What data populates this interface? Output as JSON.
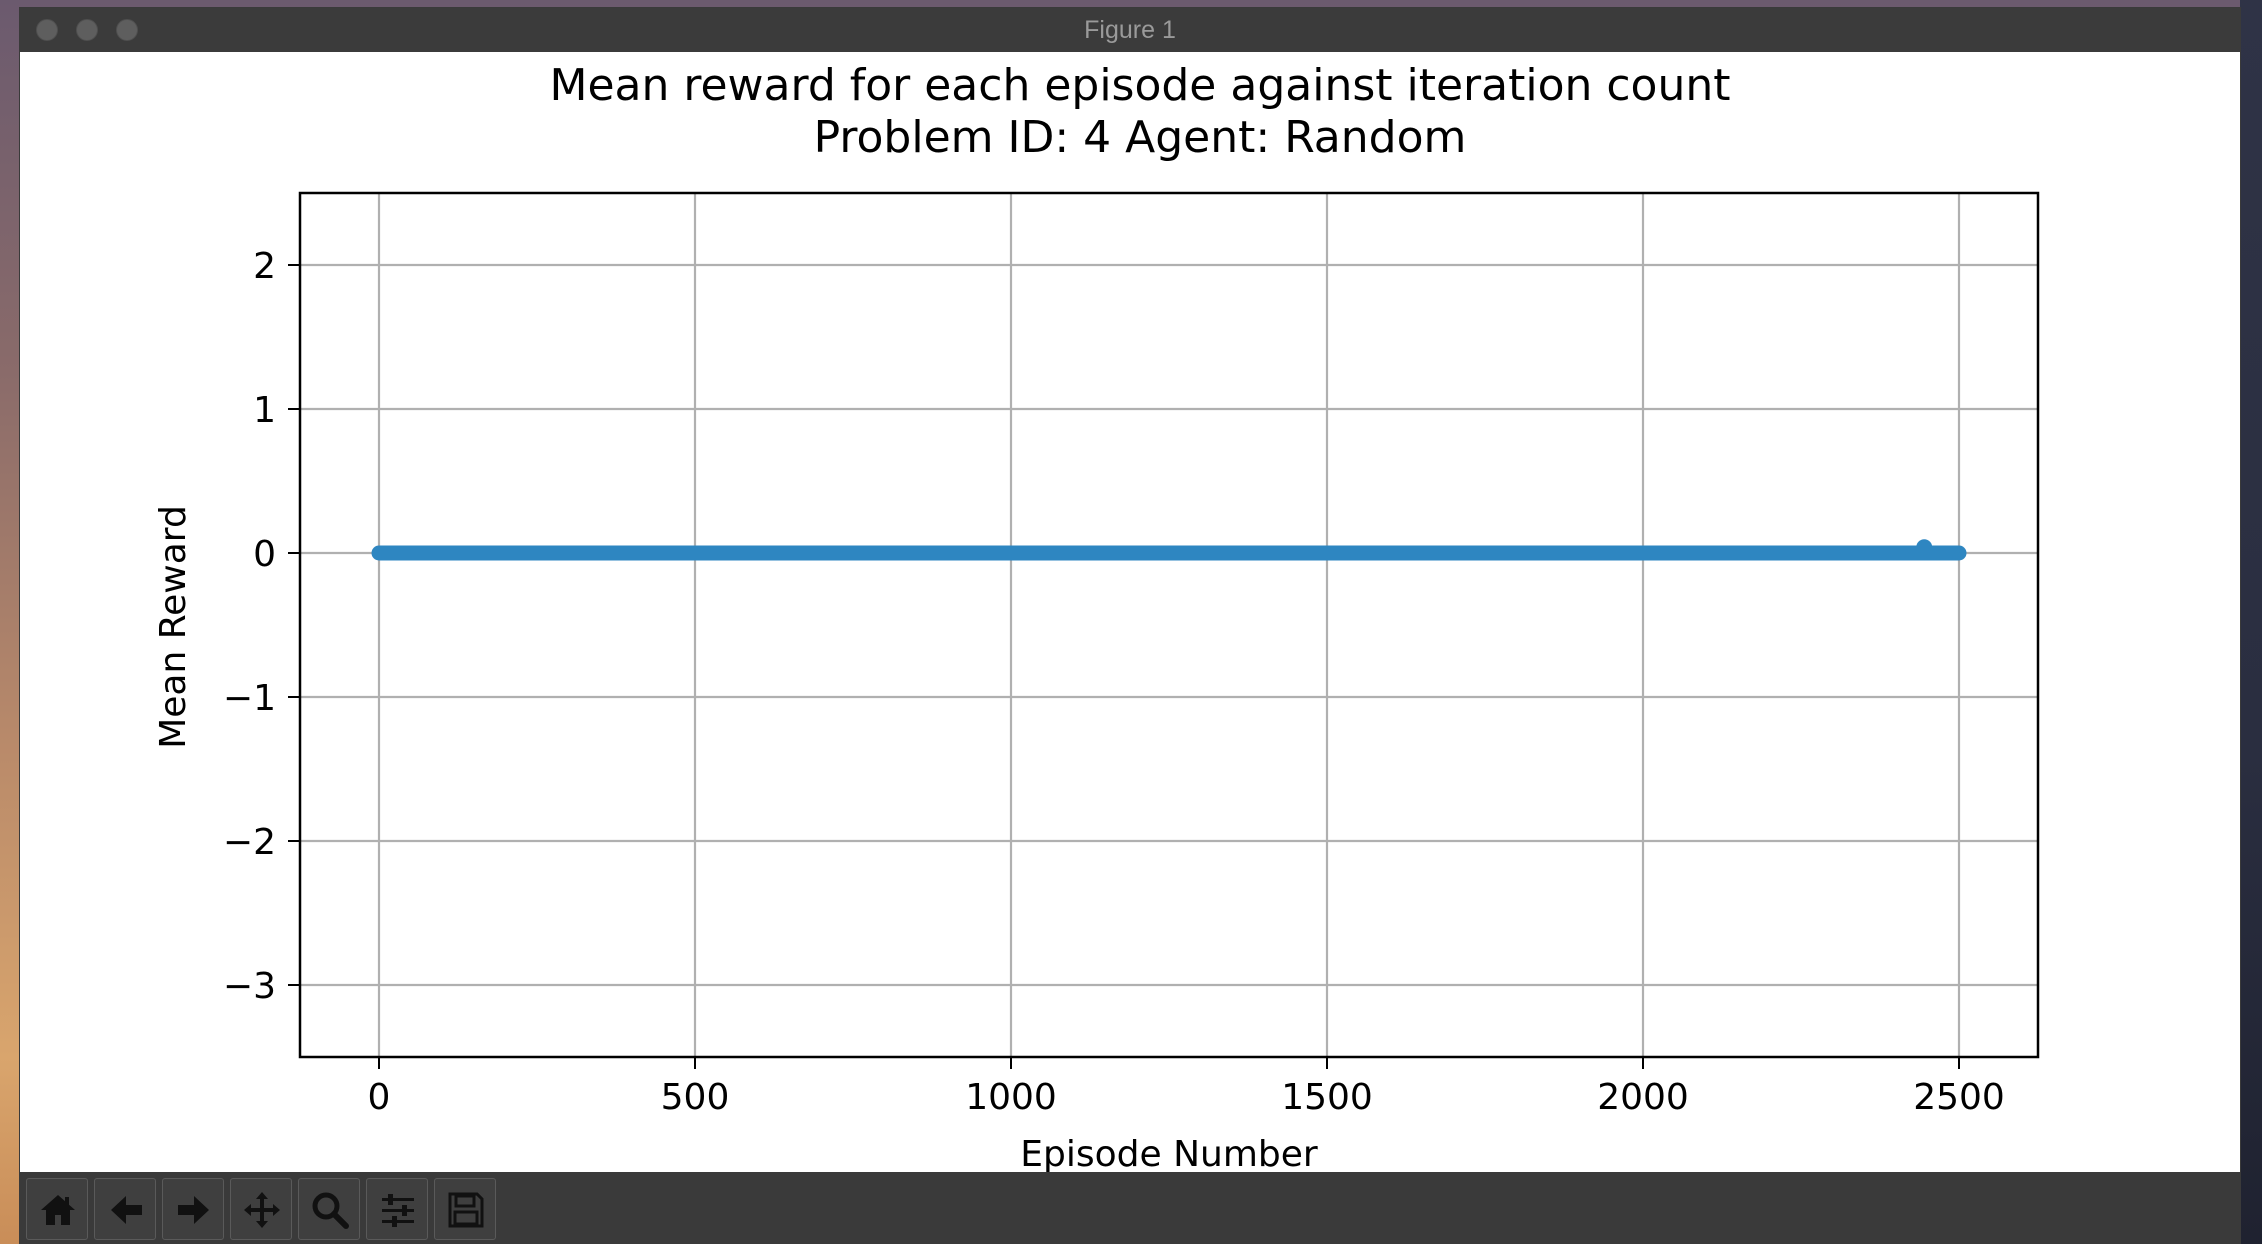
{
  "window": {
    "title": "Figure 1"
  },
  "chart_data": {
    "type": "scatter",
    "title": "Mean reward for each episode against iteration count",
    "subtitle": "Problem ID: 4 Agent: Random",
    "xlabel": "Episode Number",
    "ylabel": "Mean Reward",
    "xlim": [
      -125,
      2625
    ],
    "ylim": [
      -3.5,
      2.5
    ],
    "xticks": [
      0,
      500,
      1000,
      1500,
      2000,
      2500
    ],
    "yticks": [
      2,
      1,
      0,
      -1,
      -2,
      -3
    ],
    "ytick_labels": [
      "2",
      "1",
      "0",
      "−1",
      "−2",
      "−3"
    ],
    "grid": true,
    "color": "#2e86c1",
    "series": [
      {
        "x_range": [
          0,
          2500
        ],
        "y": 0.0
      }
    ],
    "outliers": [
      {
        "x": 2445,
        "y": 0.04
      }
    ]
  },
  "toolbar": {
    "buttons": [
      {
        "icon": "home-icon"
      },
      {
        "icon": "back-arrow-icon"
      },
      {
        "icon": "forward-arrow-icon"
      },
      {
        "icon": "pan-icon"
      },
      {
        "icon": "zoom-icon"
      },
      {
        "icon": "configure-subplots-icon"
      },
      {
        "icon": "save-icon"
      }
    ]
  }
}
